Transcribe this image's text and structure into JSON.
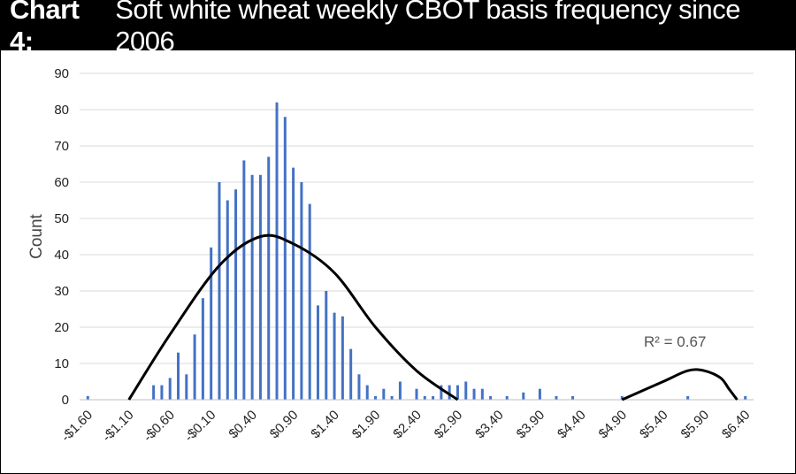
{
  "header": {
    "prefix": "Chart 4:",
    "title": "Soft white wheat weekly CBOT basis frequency since 2006"
  },
  "chart_data": {
    "type": "bar",
    "ylabel": "Count",
    "xlabel": "",
    "ylim": [
      0,
      90
    ],
    "yticks": [
      0,
      10,
      20,
      30,
      40,
      50,
      60,
      70,
      80,
      90
    ],
    "grid": true,
    "bar_color": "#4472c4",
    "trendline_color": "#000000",
    "x_ticks": [
      "-$1.60",
      "-$1.10",
      "-$0.60",
      "-$0.10",
      "$0.40",
      "$0.90",
      "$1.40",
      "$1.90",
      "$2.40",
      "$2.90",
      "$3.40",
      "$3.90",
      "$4.40",
      "$4.90",
      "$5.40",
      "$5.90",
      "$6.40"
    ],
    "x_step": 0.1,
    "x": [
      -1.6,
      -1.5,
      -1.4,
      -1.3,
      -1.2,
      -1.1,
      -1.0,
      -0.9,
      -0.8,
      -0.7,
      -0.6,
      -0.5,
      -0.4,
      -0.3,
      -0.2,
      -0.1,
      0.0,
      0.1,
      0.2,
      0.3,
      0.4,
      0.5,
      0.6,
      0.7,
      0.8,
      0.9,
      1.0,
      1.1,
      1.2,
      1.3,
      1.4,
      1.5,
      1.6,
      1.7,
      1.8,
      1.9,
      2.0,
      2.1,
      2.2,
      2.3,
      2.4,
      2.5,
      2.6,
      2.7,
      2.8,
      2.9,
      3.0,
      3.1,
      3.2,
      3.3,
      3.4,
      3.5,
      3.6,
      3.7,
      3.8,
      3.9,
      4.0,
      4.1,
      4.2,
      4.3,
      4.4,
      4.5,
      4.6,
      4.7,
      4.8,
      4.9,
      5.0,
      5.1,
      5.2,
      5.3,
      5.4,
      5.5,
      5.6,
      5.7,
      5.8,
      5.9,
      6.0,
      6.1,
      6.2,
      6.3,
      6.4
    ],
    "values": [
      1,
      0,
      0,
      0,
      0,
      0,
      0,
      0,
      4,
      4,
      6,
      13,
      7,
      18,
      28,
      42,
      60,
      55,
      58,
      66,
      62,
      62,
      67,
      82,
      78,
      64,
      60,
      54,
      26,
      30,
      24,
      23,
      14,
      7,
      4,
      1,
      3,
      1,
      5,
      0,
      3,
      1,
      1,
      4,
      4,
      4,
      5,
      3,
      3,
      1,
      0,
      1,
      0,
      2,
      0,
      3,
      0,
      1,
      0,
      1,
      0,
      0,
      0,
      0,
      0,
      1,
      0,
      0,
      0,
      0,
      0,
      0,
      0,
      1,
      0,
      0,
      0,
      0,
      0,
      0,
      1
    ],
    "trendline": {
      "type": "polynomial",
      "points": [
        [
          -1.1,
          0
        ],
        [
          -0.6,
          18
        ],
        [
          0.0,
          37
        ],
        [
          0.5,
          45
        ],
        [
          0.9,
          43
        ],
        [
          1.4,
          35
        ],
        [
          1.9,
          20
        ],
        [
          2.4,
          8
        ],
        [
          2.9,
          0
        ],
        [
          4.9,
          0
        ],
        [
          5.4,
          5
        ],
        [
          5.7,
          8
        ],
        [
          5.9,
          8
        ],
        [
          6.1,
          6
        ],
        [
          6.2,
          3
        ],
        [
          6.3,
          0
        ]
      ],
      "annotation": "R² = 0.67"
    }
  }
}
